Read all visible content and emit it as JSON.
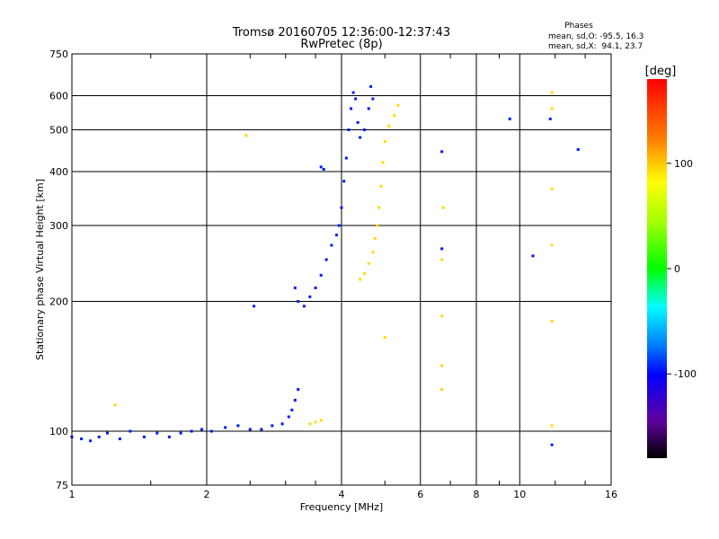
{
  "chart_data": {
    "type": "scatter",
    "title": "Tromsø 20160705 12:36:00-12:37:43",
    "subtitle": "RwPretec (8p)",
    "xlabel": "Frequency [MHz]",
    "ylabel": "Stationary phase Virtual Height [km]",
    "x_scale": "log2",
    "y_scale": "log",
    "xlim": [
      1,
      16
    ],
    "ylim": [
      75,
      750
    ],
    "x_ticks": [
      1,
      2,
      4,
      6,
      8,
      10,
      16
    ],
    "x_tick_labels": [
      "1",
      "2",
      "4",
      "6",
      "8",
      "10",
      "16"
    ],
    "x_gridlines": [
      2,
      4,
      6,
      8,
      10
    ],
    "y_ticks": [
      75,
      100,
      200,
      300,
      400,
      500,
      600,
      750
    ],
    "y_tick_labels": [
      "75",
      "100",
      "200",
      "300",
      "400",
      "500",
      "600",
      "750"
    ],
    "y_gridlines": [
      100,
      200,
      300,
      400,
      500,
      600
    ],
    "grid": true,
    "phases": {
      "heading": "Phases",
      "line_o": "mean, sd,O: -95.5, 16.3",
      "line_x": "mean, sd,X:  94.1, 23.7"
    },
    "colorbar": {
      "label": "[deg]",
      "range": [
        -180,
        180
      ],
      "ticks": [
        100,
        0,
        -100
      ],
      "tick_labels": [
        "100",
        "0",
        "-100"
      ]
    },
    "series": [
      {
        "name": "O",
        "color_phase": -95.5,
        "points": [
          [
            1.0,
            97
          ],
          [
            1.05,
            96
          ],
          [
            1.1,
            95
          ],
          [
            1.15,
            97
          ],
          [
            1.2,
            99
          ],
          [
            1.28,
            96
          ],
          [
            1.35,
            100
          ],
          [
            1.45,
            97
          ],
          [
            1.55,
            99
          ],
          [
            1.65,
            97
          ],
          [
            1.75,
            99
          ],
          [
            1.85,
            100
          ],
          [
            1.95,
            101
          ],
          [
            2.05,
            100
          ],
          [
            2.2,
            102
          ],
          [
            2.35,
            103
          ],
          [
            2.5,
            101
          ],
          [
            2.65,
            101
          ],
          [
            2.8,
            103
          ],
          [
            2.95,
            104
          ],
          [
            3.05,
            108
          ],
          [
            3.1,
            112
          ],
          [
            3.15,
            118
          ],
          [
            3.2,
            125
          ],
          [
            3.15,
            215
          ],
          [
            3.2,
            200
          ],
          [
            3.3,
            195
          ],
          [
            3.4,
            205
          ],
          [
            3.5,
            215
          ],
          [
            3.6,
            230
          ],
          [
            3.7,
            250
          ],
          [
            3.8,
            270
          ],
          [
            3.9,
            285
          ],
          [
            3.95,
            300
          ],
          [
            4.0,
            330
          ],
          [
            4.05,
            380
          ],
          [
            4.1,
            430
          ],
          [
            4.15,
            500
          ],
          [
            4.2,
            560
          ],
          [
            4.25,
            610
          ],
          [
            4.3,
            590
          ],
          [
            4.35,
            520
          ],
          [
            4.4,
            480
          ],
          [
            4.5,
            500
          ],
          [
            4.6,
            560
          ],
          [
            4.65,
            630
          ],
          [
            4.7,
            590
          ],
          [
            3.6,
            410
          ],
          [
            3.65,
            405
          ],
          [
            2.55,
            195
          ],
          [
            6.7,
            265
          ],
          [
            6.7,
            445
          ],
          [
            9.5,
            530
          ],
          [
            11.7,
            530
          ],
          [
            13.5,
            450
          ],
          [
            10.7,
            255
          ],
          [
            11.8,
            93
          ]
        ]
      },
      {
        "name": "X",
        "color_phase": 94.1,
        "points": [
          [
            3.4,
            104
          ],
          [
            3.5,
            105
          ],
          [
            3.6,
            106
          ],
          [
            4.4,
            225
          ],
          [
            4.5,
            232
          ],
          [
            4.6,
            245
          ],
          [
            4.7,
            260
          ],
          [
            4.75,
            280
          ],
          [
            4.8,
            300
          ],
          [
            4.85,
            330
          ],
          [
            4.9,
            370
          ],
          [
            4.95,
            420
          ],
          [
            5.0,
            470
          ],
          [
            5.1,
            510
          ],
          [
            5.25,
            540
          ],
          [
            5.35,
            570
          ],
          [
            2.45,
            485
          ],
          [
            1.25,
            115
          ],
          [
            6.7,
            250
          ],
          [
            6.75,
            330
          ],
          [
            6.7,
            185
          ],
          [
            6.7,
            142
          ],
          [
            6.7,
            125
          ],
          [
            5.0,
            165
          ],
          [
            11.8,
            610
          ],
          [
            11.8,
            560
          ],
          [
            11.8,
            365
          ],
          [
            11.8,
            270
          ],
          [
            11.8,
            180
          ],
          [
            11.8,
            103
          ]
        ]
      }
    ]
  }
}
